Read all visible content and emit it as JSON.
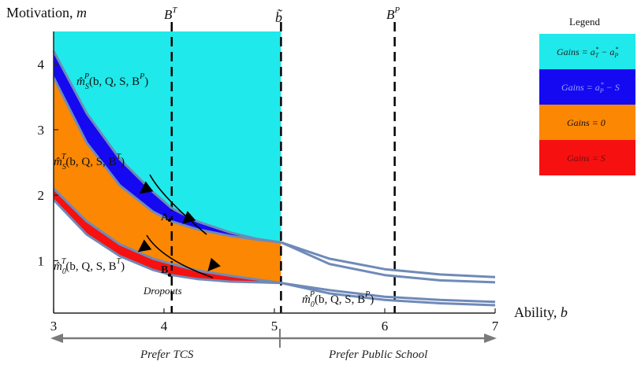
{
  "chart_data": {
    "type": "area",
    "title": "",
    "xlabel": "Ability, b",
    "ylabel": "Motivation, m",
    "xlim": [
      3,
      7
    ],
    "ylim": [
      0.2,
      4.5
    ],
    "x_ticks": [
      "3",
      "4",
      "5",
      "6",
      "7"
    ],
    "y_ticks": [
      "1",
      "2",
      "3",
      "4"
    ],
    "vlines": [
      {
        "x": 4.07,
        "label": "B^T"
      },
      {
        "x": 5.06,
        "label": "b̃"
      },
      {
        "x": 6.09,
        "label": "B^P"
      }
    ],
    "curves": [
      {
        "name": "m_S^P",
        "points": [
          [
            3,
            4.2
          ],
          [
            3.3,
            3.25
          ],
          [
            3.6,
            2.55
          ],
          [
            3.9,
            2.05
          ],
          [
            4.07,
            1.8
          ],
          [
            4.3,
            1.6
          ],
          [
            4.6,
            1.43
          ],
          [
            4.85,
            1.33
          ],
          [
            5.06,
            1.28
          ],
          [
            5.5,
            1.03
          ],
          [
            6,
            0.87
          ],
          [
            6.5,
            0.79
          ],
          [
            7,
            0.75
          ]
        ]
      },
      {
        "name": "m_S^P_lower",
        "points": [
          [
            5.06,
            1.28
          ],
          [
            5.5,
            0.95
          ],
          [
            6,
            0.78
          ],
          [
            6.5,
            0.7
          ],
          [
            7,
            0.67
          ]
        ]
      },
      {
        "name": "m_S^T",
        "points": [
          [
            3,
            3.8
          ],
          [
            3.3,
            2.8
          ],
          [
            3.6,
            2.15
          ],
          [
            3.9,
            1.75
          ],
          [
            4.07,
            1.6
          ],
          [
            4.3,
            1.48
          ],
          [
            4.6,
            1.38
          ],
          [
            4.85,
            1.32
          ],
          [
            5.06,
            1.28
          ]
        ]
      },
      {
        "name": "m_0^T_upper",
        "points": [
          [
            3,
            2.1
          ],
          [
            3.3,
            1.6
          ],
          [
            3.6,
            1.25
          ],
          [
            3.9,
            1.03
          ],
          [
            4.07,
            0.95
          ],
          [
            4.3,
            0.85
          ],
          [
            4.6,
            0.77
          ],
          [
            4.85,
            0.71
          ],
          [
            5.06,
            0.66
          ]
        ]
      },
      {
        "name": "m_0^T",
        "points": [
          [
            3,
            1.93
          ],
          [
            3.3,
            1.4
          ],
          [
            3.6,
            1.07
          ],
          [
            3.9,
            0.86
          ],
          [
            4.07,
            0.78
          ],
          [
            4.3,
            0.72
          ],
          [
            4.6,
            0.68
          ],
          [
            4.85,
            0.67
          ],
          [
            5.06,
            0.66
          ]
        ]
      },
      {
        "name": "m_0^P_upper",
        "points": [
          [
            5.06,
            0.66
          ],
          [
            5.5,
            0.55
          ],
          [
            6,
            0.45
          ],
          [
            6.5,
            0.4
          ],
          [
            7,
            0.37
          ]
        ]
      },
      {
        "name": "m_0^P",
        "points": [
          [
            5.06,
            0.66
          ],
          [
            5.5,
            0.5
          ],
          [
            6,
            0.4
          ],
          [
            6.5,
            0.35
          ],
          [
            7,
            0.32
          ]
        ]
      }
    ],
    "regions": [
      {
        "legend": "Gains = a_T^* - a_P^*",
        "color": "#1fe9ea"
      },
      {
        "legend": "Gains = a_P^* - S",
        "color": "#1509f2"
      },
      {
        "legend": "Gains = 0",
        "color": "#fb8703"
      },
      {
        "legend": "Gains = S",
        "color": "#f71010"
      }
    ],
    "curve_labels": [
      {
        "text": "m̂_S^P(b,Q,S,B^P)"
      },
      {
        "text": "m̂_S^T(b,Q,S,B^T)"
      },
      {
        "text": "m̂_0^T(b,Q,S,B^T)"
      },
      {
        "text": "m̂_0^P(b,Q,S,B^P)"
      }
    ],
    "points": [
      {
        "label": "A",
        "x": 4.05,
        "y": 1.62
      },
      {
        "label": "B",
        "x": 4.05,
        "y": 0.78
      }
    ],
    "annotations": [
      "Dropouts"
    ],
    "legend_title": "Legend",
    "legend_placement": "right",
    "ranges": [
      {
        "label": "Prefer TCS",
        "from": 3,
        "to": 5.06
      },
      {
        "label": "Prefer Public School",
        "from": 5.06,
        "to": 7
      }
    ]
  }
}
